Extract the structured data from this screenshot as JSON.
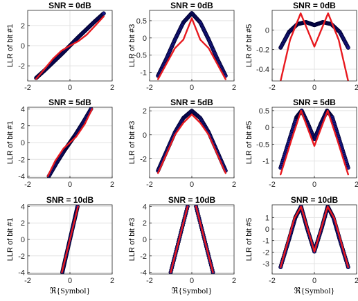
{
  "colors": {
    "exact": "#1a1a8c",
    "exact_edge": "#000033",
    "approx": "#e8191f",
    "axis": "#262626"
  },
  "chart_data": [
    {
      "type": "line",
      "title": "SNR = 0dB",
      "ylabel": "LLR of bit #1",
      "xlabel": "",
      "xlim": [
        -2,
        2
      ],
      "ylim": [
        -3.5,
        3.5
      ],
      "xticks": [
        -2,
        0,
        2
      ],
      "xtick_labels": [
        "-2",
        "0",
        "2"
      ],
      "yticks": [
        -2,
        0,
        2
      ],
      "ytick_labels": [
        "-2",
        "0",
        "2"
      ],
      "series": [
        {
          "style": "markers",
          "values": [
            [
              -1.6,
              -3.2
            ],
            [
              -1.2,
              -2.45
            ],
            [
              -0.8,
              -1.65
            ],
            [
              -0.4,
              -0.85
            ],
            [
              0,
              0
            ],
            [
              0.4,
              0.85
            ],
            [
              0.8,
              1.65
            ],
            [
              1.2,
              2.45
            ],
            [
              1.6,
              3.2
            ]
          ]
        },
        {
          "style": "line",
          "values": [
            [
              -1.6,
              -3.3
            ],
            [
              -1.2,
              -2.3
            ],
            [
              -0.8,
              -1.3
            ],
            [
              -0.4,
              -0.5
            ],
            [
              0,
              0
            ],
            [
              0.4,
              0.45
            ],
            [
              0.8,
              1.1
            ],
            [
              1.2,
              2.0
            ],
            [
              1.6,
              2.9
            ]
          ]
        }
      ]
    },
    {
      "type": "line",
      "title": "SNR = 0dB",
      "ylabel": "LLR of bit #3",
      "xlabel": "",
      "xlim": [
        -2,
        2
      ],
      "ylim": [
        -1.25,
        0.8
      ],
      "xticks": [
        -2,
        0,
        2
      ],
      "xtick_labels": [
        "-2",
        "0",
        "2"
      ],
      "yticks": [
        -1,
        -0.5,
        0,
        0.5
      ],
      "ytick_labels": [
        "-1",
        "-0.5",
        "0",
        "0.5"
      ],
      "series": [
        {
          "style": "markers",
          "values": [
            [
              -1.6,
              -1.1
            ],
            [
              -1.2,
              -0.6
            ],
            [
              -0.8,
              -0.05
            ],
            [
              -0.4,
              0.45
            ],
            [
              0,
              0.72
            ],
            [
              0.4,
              0.45
            ],
            [
              0.8,
              -0.05
            ],
            [
              1.2,
              -0.6
            ],
            [
              1.6,
              -1.1
            ]
          ]
        },
        {
          "style": "line",
          "values": [
            [
              -1.6,
              -1.2
            ],
            [
              -1.2,
              -0.75
            ],
            [
              -0.8,
              -0.3
            ],
            [
              -0.4,
              -0.05
            ],
            [
              0,
              0.57
            ],
            [
              0.4,
              -0.05
            ],
            [
              0.8,
              -0.3
            ],
            [
              1.2,
              -0.75
            ],
            [
              1.6,
              -1.2
            ]
          ]
        }
      ]
    },
    {
      "type": "line",
      "title": "SNR = 0dB",
      "ylabel": "LLR of bit #5",
      "xlabel": "",
      "xlim": [
        -2,
        2
      ],
      "ylim": [
        -0.52,
        0.2
      ],
      "xticks": [
        -2,
        0,
        2
      ],
      "xtick_labels": [
        "-2",
        "0",
        "2"
      ],
      "yticks": [
        -0.4,
        -0.2,
        0
      ],
      "ytick_labels": [
        "-0.4",
        "-0.2",
        "0"
      ],
      "series": [
        {
          "style": "markers",
          "values": [
            [
              -1.6,
              -0.18
            ],
            [
              -1.2,
              -0.02
            ],
            [
              -0.8,
              0.06
            ],
            [
              -0.4,
              0.08
            ],
            [
              0,
              0.05
            ],
            [
              0.4,
              0.08
            ],
            [
              0.8,
              0.06
            ],
            [
              1.2,
              -0.02
            ],
            [
              1.6,
              -0.18
            ]
          ]
        },
        {
          "style": "line",
          "values": [
            [
              -1.6,
              -0.52
            ],
            [
              -1.15,
              -0.1
            ],
            [
              -0.65,
              0.17
            ],
            [
              0,
              -0.17
            ],
            [
              0.65,
              0.17
            ],
            [
              1.15,
              -0.1
            ],
            [
              1.6,
              -0.52
            ]
          ]
        }
      ]
    },
    {
      "type": "line",
      "title": "SNR = 5dB",
      "ylabel": "LLR of bit #1",
      "xlabel": "",
      "xlim": [
        -2,
        2
      ],
      "ylim": [
        -4.2,
        4.2
      ],
      "xticks": [
        -2,
        0,
        2
      ],
      "xtick_labels": [
        "-2",
        "0",
        "2"
      ],
      "yticks": [
        -4,
        -2,
        0,
        2,
        4
      ],
      "ytick_labels": [
        "-4",
        "-2",
        "0",
        "2",
        "4"
      ],
      "series": [
        {
          "style": "markers",
          "values": [
            [
              -1.0,
              -4.0
            ],
            [
              -0.6,
              -2.3
            ],
            [
              -0.25,
              -0.9
            ],
            [
              0,
              0
            ],
            [
              0.25,
              0.9
            ],
            [
              0.6,
              2.3
            ],
            [
              1.0,
              4.0
            ]
          ]
        },
        {
          "style": "line",
          "values": [
            [
              -1.05,
              -4.0
            ],
            [
              -0.7,
              -2.2
            ],
            [
              -0.3,
              -0.7
            ],
            [
              0,
              0
            ],
            [
              0.3,
              0.7
            ],
            [
              0.7,
              2.2
            ],
            [
              1.05,
              4.0
            ]
          ]
        }
      ]
    },
    {
      "type": "line",
      "title": "SNR = 5dB",
      "ylabel": "LLR of bit #3",
      "xlabel": "",
      "xlim": [
        -2,
        2
      ],
      "ylim": [
        -3.6,
        2.3
      ],
      "xticks": [
        -2,
        0,
        2
      ],
      "xtick_labels": [
        "-2",
        "0",
        "2"
      ],
      "yticks": [
        -2,
        0,
        2
      ],
      "ytick_labels": [
        "-2",
        "0",
        "2"
      ],
      "series": [
        {
          "style": "markers",
          "values": [
            [
              -1.6,
              -3.0
            ],
            [
              -1.2,
              -1.4
            ],
            [
              -0.8,
              0.2
            ],
            [
              -0.4,
              1.4
            ],
            [
              0,
              2.0
            ],
            [
              0.4,
              1.4
            ],
            [
              0.8,
              0.2
            ],
            [
              1.2,
              -1.4
            ],
            [
              1.6,
              -3.0
            ]
          ]
        },
        {
          "style": "line",
          "values": [
            [
              -1.6,
              -3.2
            ],
            [
              -1.2,
              -1.6
            ],
            [
              -0.8,
              0.0
            ],
            [
              -0.4,
              1.0
            ],
            [
              0,
              1.7
            ],
            [
              0.4,
              1.0
            ],
            [
              0.8,
              0.0
            ],
            [
              1.2,
              -1.6
            ],
            [
              1.6,
              -3.2
            ]
          ]
        }
      ]
    },
    {
      "type": "line",
      "title": "SNR = 5dB",
      "ylabel": "LLR of bit #5",
      "xlabel": "",
      "xlim": [
        -2,
        2
      ],
      "ylim": [
        -1.5,
        0.6
      ],
      "xticks": [
        -2,
        0,
        2
      ],
      "xtick_labels": [
        "-2",
        "0",
        "2"
      ],
      "yticks": [
        -1,
        -0.5,
        0,
        0.5
      ],
      "ytick_labels": [
        "-1",
        "-0.5",
        "0",
        "0.5"
      ],
      "series": [
        {
          "style": "markers",
          "values": [
            [
              -1.6,
              -1.2
            ],
            [
              -1.2,
              -0.4
            ],
            [
              -0.85,
              0.3
            ],
            [
              -0.6,
              0.5
            ],
            [
              -0.3,
              0.1
            ],
            [
              0,
              -0.35
            ],
            [
              0.3,
              0.1
            ],
            [
              0.6,
              0.5
            ],
            [
              0.85,
              0.3
            ],
            [
              1.2,
              -0.4
            ],
            [
              1.6,
              -1.2
            ]
          ]
        },
        {
          "style": "line",
          "values": [
            [
              -1.6,
              -1.4
            ],
            [
              -1.1,
              -0.4
            ],
            [
              -0.63,
              0.5
            ],
            [
              0,
              -0.55
            ],
            [
              0.63,
              0.5
            ],
            [
              1.1,
              -0.4
            ],
            [
              1.6,
              -1.4
            ]
          ]
        }
      ]
    },
    {
      "type": "line",
      "title": "SNR = 10dB",
      "ylabel": "LLR of bit #1",
      "xlabel": "ℜ{Symbol}",
      "xlim": [
        -2,
        2
      ],
      "ylim": [
        -4.2,
        4.2
      ],
      "xticks": [
        -2,
        0,
        2
      ],
      "xtick_labels": [
        "-2",
        "0",
        "2"
      ],
      "yticks": [
        -4,
        -2,
        0,
        2,
        4
      ],
      "ytick_labels": [
        "-4",
        "-2",
        "0",
        "2",
        "4"
      ],
      "series": [
        {
          "style": "markers",
          "values": [
            [
              -0.36,
              -4.0
            ],
            [
              -0.2,
              -2.2
            ],
            [
              0,
              0
            ],
            [
              0.2,
              2.2
            ],
            [
              0.36,
              4.0
            ]
          ]
        },
        {
          "style": "line",
          "values": [
            [
              -0.38,
              -4.0
            ],
            [
              -0.2,
              -2.1
            ],
            [
              0,
              0
            ],
            [
              0.2,
              2.1
            ],
            [
              0.38,
              4.0
            ]
          ]
        }
      ]
    },
    {
      "type": "line",
      "title": "SNR = 10dB",
      "ylabel": "LLR of bit #3",
      "xlabel": "ℜ{Symbol}",
      "xlim": [
        -2,
        2
      ],
      "ylim": [
        -4.2,
        4.2
      ],
      "xticks": [
        -2,
        0,
        2
      ],
      "xtick_labels": [
        "-2",
        "0",
        "2"
      ],
      "yticks": [
        -4,
        -2,
        0,
        2,
        4
      ],
      "ytick_labels": [
        "-4",
        "-2",
        "0",
        "2",
        "4"
      ],
      "series": [
        {
          "style": "markers",
          "values": [
            [
              -1.0,
              -4.0
            ],
            [
              -0.6,
              0.0
            ],
            [
              -0.2,
              4.0
            ]
          ]
        },
        {
          "style": "markers",
          "values": [
            [
              0.2,
              4.0
            ],
            [
              0.6,
              0.0
            ],
            [
              1.0,
              -4.0
            ]
          ]
        },
        {
          "style": "line",
          "values": [
            [
              -1.0,
              -4.0
            ],
            [
              -0.6,
              0.0
            ],
            [
              -0.2,
              4.0
            ]
          ]
        },
        {
          "style": "line",
          "values": [
            [
              0.2,
              4.0
            ],
            [
              0.6,
              0.0
            ],
            [
              1.0,
              -4.0
            ]
          ]
        }
      ]
    },
    {
      "type": "line",
      "title": "SNR = 10dB",
      "ylabel": "LLR of bit #5",
      "xlabel": "ℜ{Symbol}",
      "xlim": [
        -2,
        2
      ],
      "ylim": [
        -3.9,
        2.1
      ],
      "xticks": [
        -2,
        0,
        2
      ],
      "xtick_labels": [
        "-2",
        "0",
        "2"
      ],
      "yticks": [
        -3,
        -2,
        -1,
        0,
        1
      ],
      "ytick_labels": [
        "-3",
        "-2",
        "-1",
        "0",
        "1"
      ],
      "series": [
        {
          "style": "markers",
          "values": [
            [
              -1.6,
              -3.3
            ],
            [
              -1.2,
              -0.9
            ],
            [
              -0.9,
              1.0
            ],
            [
              -0.63,
              1.95
            ],
            [
              -0.35,
              0.1
            ],
            [
              0,
              -1.95
            ],
            [
              0.35,
              0.1
            ],
            [
              0.63,
              1.95
            ],
            [
              0.9,
              1.0
            ],
            [
              1.2,
              -0.9
            ],
            [
              1.6,
              -3.3
            ]
          ]
        },
        {
          "style": "line",
          "values": [
            [
              -1.6,
              -3.3
            ],
            [
              -0.95,
              0.9
            ],
            [
              -0.63,
              1.95
            ],
            [
              0,
              -1.95
            ],
            [
              0.63,
              1.95
            ],
            [
              0.95,
              0.9
            ],
            [
              1.6,
              -3.3
            ]
          ]
        }
      ]
    }
  ]
}
